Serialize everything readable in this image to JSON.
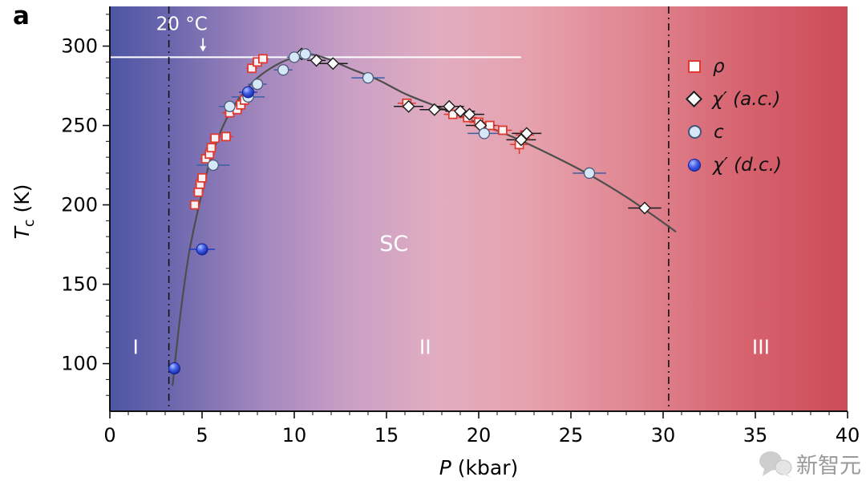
{
  "figure": {
    "panel_label": "a"
  },
  "watermark": {
    "text": "新智元",
    "icon": "chat-bubbles-icon"
  },
  "legend": {
    "items": [
      {
        "label": "ρ",
        "marker": "open-square",
        "color": "#e0392f"
      },
      {
        "label": "χ′ (a.c.)",
        "marker": "open-diamond",
        "color": "#1a1a1a"
      },
      {
        "label": "c",
        "marker": "light-circle",
        "color": "#d6e8f8"
      },
      {
        "label": "χ′ (d.c.)",
        "marker": "blue-sphere",
        "color": "#2038c8"
      }
    ]
  },
  "chart_data": {
    "type": "scatter",
    "xlabel": {
      "main": "P",
      "rest": " (kbar)"
    },
    "ylabel": {
      "main": "T",
      "sub": "c",
      "rest": " (K)"
    },
    "xlim": [
      0,
      40
    ],
    "ylim": [
      70,
      325
    ],
    "x_major_ticks": [
      0,
      5,
      10,
      15,
      20,
      25,
      30,
      35,
      40
    ],
    "y_major_ticks": [
      100,
      150,
      200,
      250,
      300
    ],
    "x_minor_step": 1,
    "y_minor_step": 10,
    "background_gradient": {
      "direction": "left-right",
      "stops": [
        {
          "offset": 0,
          "color": "#4d56a4"
        },
        {
          "offset": 0.08,
          "color": "#6a66ad"
        },
        {
          "offset": 0.2,
          "color": "#a186bd"
        },
        {
          "offset": 0.32,
          "color": "#c89fc5"
        },
        {
          "offset": 0.45,
          "color": "#e2adc0"
        },
        {
          "offset": 0.58,
          "color": "#e5a0ab"
        },
        {
          "offset": 0.72,
          "color": "#df8490"
        },
        {
          "offset": 0.86,
          "color": "#d6636f"
        },
        {
          "offset": 1,
          "color": "#cc4b58"
        }
      ]
    },
    "reference_line": {
      "label": "20 °C",
      "y": 293,
      "x_start": 0,
      "x_end": 22.3,
      "color": "#ffffff",
      "label_x": 3.9,
      "label_y": 310,
      "arrow_x": 5.05,
      "arrow_from_y": 305,
      "arrow_to_y": 296.5
    },
    "phase_boundaries": {
      "x_values": [
        3.2,
        30.3
      ],
      "style": "dash-dot",
      "color": "#111111"
    },
    "region_labels": [
      {
        "text": "I",
        "x": 1.4,
        "y": 106,
        "size": 25
      },
      {
        "text": "II",
        "x": 17.1,
        "y": 106,
        "size": 25
      },
      {
        "text": "III",
        "x": 35.3,
        "y": 106,
        "size": 25
      },
      {
        "text": "SC",
        "x": 15.4,
        "y": 171,
        "size": 27
      }
    ],
    "curve": {
      "color": "#4d4d4d",
      "points": [
        [
          3.4,
          86
        ],
        [
          3.6,
          108
        ],
        [
          3.9,
          138
        ],
        [
          4.3,
          170
        ],
        [
          4.8,
          198
        ],
        [
          5.3,
          222
        ],
        [
          5.9,
          243
        ],
        [
          6.5,
          258
        ],
        [
          7.2,
          270
        ],
        [
          8,
          280
        ],
        [
          9,
          288
        ],
        [
          10,
          293
        ],
        [
          10.8,
          295
        ],
        [
          11.8,
          292
        ],
        [
          13,
          286
        ],
        [
          14.5,
          279
        ],
        [
          16,
          270
        ],
        [
          17.5,
          263
        ],
        [
          19,
          256
        ],
        [
          20.5,
          249
        ],
        [
          22,
          242
        ],
        [
          24,
          231
        ],
        [
          26,
          219
        ],
        [
          28,
          205
        ],
        [
          29.5,
          193
        ],
        [
          30.7,
          183
        ]
      ]
    },
    "series": [
      {
        "id": "rho",
        "name": "ρ",
        "marker": "open-square",
        "color": "#e0392f",
        "err_color": "#e0392f",
        "points": [
          [
            4.6,
            200,
            0.3
          ],
          [
            4.8,
            208,
            0.3
          ],
          [
            4.9,
            213,
            0.3
          ],
          [
            5.0,
            217,
            0.3
          ],
          [
            5.2,
            229,
            0.3
          ],
          [
            5.4,
            232,
            0.3
          ],
          [
            5.5,
            236,
            0.3
          ],
          [
            5.7,
            242,
            0.3
          ],
          [
            6.3,
            243,
            0.4
          ],
          [
            6.5,
            258,
            0.4
          ],
          [
            6.9,
            260,
            0.3
          ],
          [
            7.1,
            263,
            0.3
          ],
          [
            7.3,
            266,
            0.3
          ],
          [
            7.7,
            286,
            0.3
          ],
          [
            8.0,
            290,
            0.3
          ],
          [
            8.3,
            292,
            0.3
          ],
          [
            16.1,
            264,
            0.5
          ],
          [
            18.6,
            257,
            0.5
          ],
          [
            19.4,
            255,
            0.5
          ],
          [
            20.0,
            252,
            0.5
          ],
          [
            20.6,
            250,
            0.5
          ],
          [
            21.3,
            247,
            0.5
          ],
          [
            22.2,
            238,
            0.5,
            6
          ],
          [
            22.5,
            244,
            0.5
          ]
        ]
      },
      {
        "id": "chi-ac",
        "name": "χ′ (a.c.)",
        "marker": "open-diamond",
        "color": "#1a1a1a",
        "err_color": "#1a1a1a",
        "points": [
          [
            10.4,
            295,
            0.5
          ],
          [
            11.2,
            291,
            0.5
          ],
          [
            12.1,
            289,
            0.8
          ],
          [
            16.2,
            262,
            0.8
          ],
          [
            17.6,
            260,
            0.8
          ],
          [
            18.4,
            262,
            0.8
          ],
          [
            19.0,
            259,
            0.8
          ],
          [
            19.5,
            257,
            0.8
          ],
          [
            20.1,
            250,
            0.8
          ],
          [
            22.3,
            241,
            0.8,
            5
          ],
          [
            22.6,
            245,
            0.8
          ],
          [
            29.0,
            198,
            0.9
          ]
        ]
      },
      {
        "id": "c",
        "name": "c",
        "marker": "light-circle",
        "color": "#d6e8f8",
        "err_color": "#3a5fa8",
        "points": [
          [
            5.6,
            225,
            0.9
          ],
          [
            6.5,
            262,
            0.6
          ],
          [
            7.5,
            268,
            0.9
          ],
          [
            8.0,
            276,
            0.5
          ],
          [
            9.4,
            285,
            0.5
          ],
          [
            10.0,
            293,
            0.4
          ],
          [
            10.6,
            295,
            0.4
          ],
          [
            14.0,
            280,
            0.9
          ],
          [
            20.3,
            245,
            0.9
          ],
          [
            26.0,
            220,
            0.9
          ]
        ]
      },
      {
        "id": "chi-dc",
        "name": "χ′ (d.c.)",
        "marker": "blue-sphere",
        "color": "#2038c8",
        "err_color": "#2038c8",
        "points": [
          [
            3.5,
            97,
            0.3
          ],
          [
            5.0,
            172,
            0.7
          ],
          [
            7.5,
            271,
            0.5
          ]
        ]
      }
    ]
  }
}
